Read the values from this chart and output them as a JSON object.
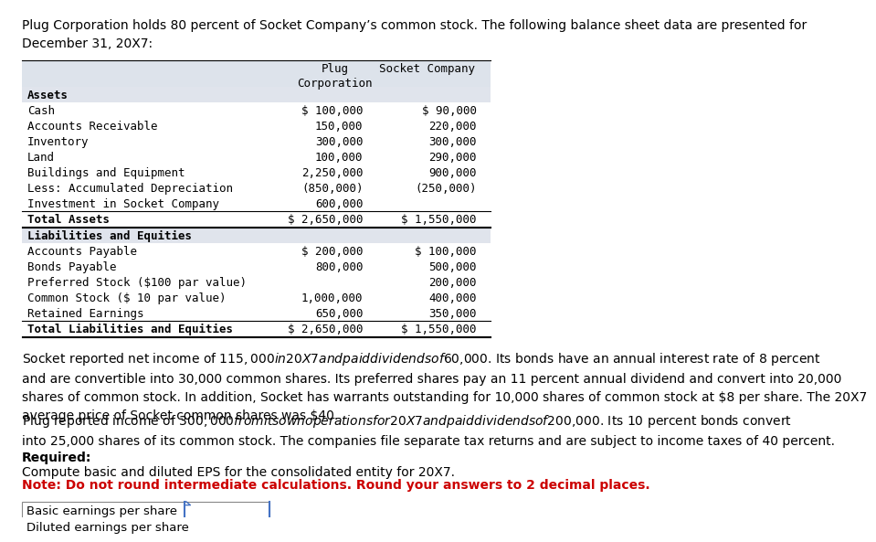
{
  "title_text": "Plug Corporation holds 80 percent of Socket Company’s common stock. The following balance sheet data are presented for\nDecember 31, 20X7:",
  "bg_color": "#ffffff",
  "table_header_bg": "#dde3eb",
  "assets_section_label": "Assets",
  "assets_rows": [
    [
      "Cash",
      "$ 100,000",
      "$ 90,000"
    ],
    [
      "Accounts Receivable",
      "150,000",
      "220,000"
    ],
    [
      "Inventory",
      "300,000",
      "300,000"
    ],
    [
      "Land",
      "100,000",
      "290,000"
    ],
    [
      "Buildings and Equipment",
      "2,250,000",
      "900,000"
    ],
    [
      "Less: Accumulated Depreciation",
      "(850,000)",
      "(250,000)"
    ],
    [
      "Investment in Socket Company",
      "600,000",
      ""
    ]
  ],
  "total_assets_row": [
    "Total Assets",
    "$ 2,650,000",
    "$ 1,550,000"
  ],
  "liab_section_label": "Liabilities and Equities",
  "liab_rows": [
    [
      "Accounts Payable",
      "$ 200,000",
      "$ 100,000"
    ],
    [
      "Bonds Payable",
      "800,000",
      "500,000"
    ],
    [
      "Preferred Stock ($100 par value)",
      "",
      "200,000"
    ],
    [
      "Common Stock ($ 10 par value)",
      "1,000,000",
      "400,000"
    ],
    [
      "Retained Earnings",
      "650,000",
      "350,000"
    ]
  ],
  "total_liab_row": [
    "Total Liabilities and Equities",
    "$ 2,650,000",
    "$ 1,550,000"
  ],
  "paragraph1_parts": [
    "Socket reported net income of ",
    "$115,000",
    " in 20X7 and paid dividends of ",
    "$60,000",
    ". Its bonds have an annual interest rate of 8 percent\nand are convertible into 30,000 common shares. Its preferred shares pay an 11 percent annual dividend and convert into 20,000\nshares of common stock. In addition, Socket has warrants outstanding for 10,000 shares of common stock at ",
    "$8",
    " per share. The 20X7\naverage price of Socket common shares was ",
    "$40",
    "."
  ],
  "paragraph1": "Socket reported net income of $115,000 in 20X7 and paid dividends of $60,000. Its bonds have an annual interest rate of 8 percent\nand are convertible into 30,000 common shares. Its preferred shares pay an 11 percent annual dividend and convert into 20,000\nshares of common stock. In addition, Socket has warrants outstanding for 10,000 shares of common stock at $8 per share. The 20X7\naverage price of Socket common shares was $40.",
  "paragraph2": "Plug reported income of $300,000 from its own operations for 20X7 and paid dividends of $200,000. Its 10 percent bonds convert\ninto 25,000 shares of its common stock. The companies file separate tax returns and are subject to income taxes of 40 percent.",
  "required_label": "Required:",
  "required_text": "Compute basic and diluted EPS for the consolidated entity for 20X7.",
  "note_text": "Note: Do not round intermediate calculations. Round your answers to 2 decimal places.",
  "note_color": "#cc0000",
  "eps_rows": [
    "Basic earnings per share",
    "Diluted earnings per share"
  ],
  "monospace_font": "DejaVu Sans Mono",
  "regular_font": "DejaVu Sans",
  "font_size_title": 10.0,
  "font_size_table": 9.0,
  "font_size_body": 10.0,
  "font_size_required": 10.0,
  "font_size_eps": 9.5
}
